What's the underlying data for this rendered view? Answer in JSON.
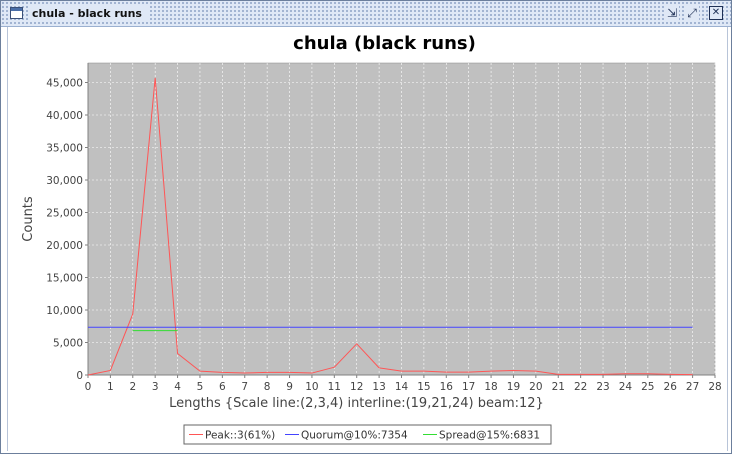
{
  "window": {
    "title": "chula - black runs",
    "buttons": {
      "iconify": "⇲",
      "maximize": "⤢",
      "close": "✕"
    }
  },
  "chart_data": {
    "type": "line",
    "title": "chula (black runs)",
    "xlabel": "Lengths {Scale line:(2,3,4) interline:(19,21,24) beam:12}",
    "ylabel": "Counts",
    "xlim": [
      0,
      28
    ],
    "ylim": [
      0,
      48000
    ],
    "xticks": [
      0,
      1,
      2,
      3,
      4,
      5,
      6,
      7,
      8,
      9,
      10,
      11,
      12,
      13,
      14,
      15,
      16,
      17,
      18,
      19,
      20,
      21,
      22,
      23,
      24,
      25,
      26,
      27,
      28
    ],
    "yticks": [
      0,
      5000,
      10000,
      15000,
      20000,
      25000,
      30000,
      35000,
      40000,
      45000
    ],
    "ytick_labels": [
      "0",
      "5,000",
      "10,000",
      "15,000",
      "20,000",
      "25,000",
      "30,000",
      "35,000",
      "40,000",
      "45,000"
    ],
    "grid": true,
    "legend_position": "bottom",
    "plot_background": "#c0c0c0",
    "series": [
      {
        "name": "Peak::3(61%)",
        "color": "#ff5555",
        "x": [
          0,
          1,
          2,
          3,
          4,
          5,
          6,
          7,
          8,
          9,
          10,
          11,
          12,
          13,
          14,
          15,
          16,
          17,
          18,
          19,
          20,
          21,
          22,
          23,
          24,
          25,
          26,
          27
        ],
        "y": [
          0,
          700,
          9400,
          45700,
          3300,
          600,
          400,
          300,
          400,
          400,
          300,
          1200,
          4800,
          1100,
          600,
          600,
          450,
          450,
          600,
          700,
          600,
          100,
          100,
          100,
          200,
          200,
          100,
          50
        ]
      },
      {
        "name": "Quorum@10%:7354",
        "color": "#4444ff",
        "x": [
          0,
          27
        ],
        "y": [
          7354,
          7354
        ]
      },
      {
        "name": "Spread@15%:6831",
        "color": "#33dd33",
        "x": [
          2,
          4
        ],
        "y": [
          6831,
          6831
        ]
      }
    ]
  }
}
